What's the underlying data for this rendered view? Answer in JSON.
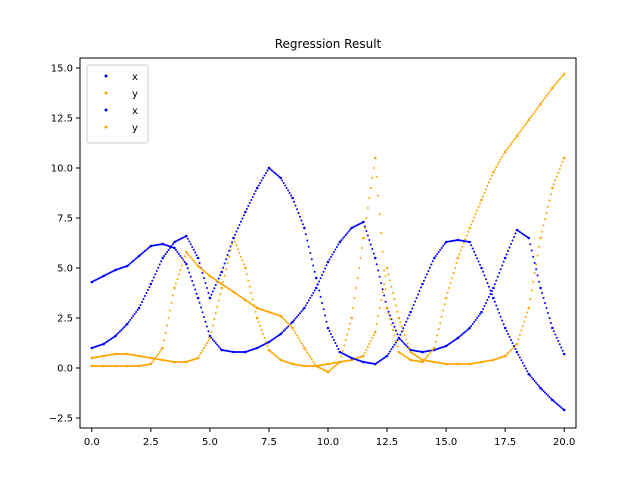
{
  "chart_data": {
    "type": "scatter",
    "title": "Regression Result",
    "xlabel": "",
    "ylabel": "",
    "xlim": [
      -0.5,
      20.5
    ],
    "ylim": [
      -3.0,
      15.5
    ],
    "xticks": [
      0.0,
      2.5,
      5.0,
      7.5,
      10.0,
      12.5,
      15.0,
      17.5,
      20.0
    ],
    "xtick_labels": [
      "0.0",
      "2.5",
      "5.0",
      "7.5",
      "10.0",
      "12.5",
      "15.0",
      "17.5",
      "20.0"
    ],
    "yticks": [
      -2.5,
      0.0,
      2.5,
      5.0,
      7.5,
      10.0,
      12.5,
      15.0
    ],
    "ytick_labels": [
      "−2.5",
      "0.0",
      "2.5",
      "5.0",
      "7.5",
      "10.0",
      "12.5",
      "15.0"
    ],
    "grid": false,
    "legend_position": "top-left",
    "series": [
      {
        "name": "x",
        "color": "#0000ff",
        "x": [
          0,
          0.5,
          1,
          1.5,
          2,
          2.5,
          3,
          3.5,
          4,
          4.5,
          5,
          5.5,
          6,
          6.5,
          7,
          7.5,
          8,
          8.5,
          9,
          9.5,
          10,
          10.5,
          11,
          11.5,
          12,
          12.5,
          13,
          13.5,
          14,
          14.5,
          15,
          15.5,
          16,
          16.5,
          17,
          17.5,
          18,
          18.5,
          19,
          19.5,
          20
        ],
        "y": [
          4.3,
          4.6,
          4.9,
          5.1,
          5.6,
          6.1,
          6.2,
          6.0,
          5.2,
          3.5,
          1.6,
          0.9,
          0.8,
          0.8,
          1.0,
          1.3,
          1.7,
          2.3,
          3.0,
          4.0,
          5.3,
          6.3,
          7.0,
          7.3,
          5.5,
          3.0,
          1.5,
          0.9,
          0.8,
          0.9,
          1.1,
          1.5,
          2.0,
          2.8,
          4.0,
          5.5,
          6.9,
          6.5,
          4.0,
          2.0,
          0.7
        ]
      },
      {
        "name": "y",
        "color": "#ffa500",
        "x": [
          0,
          0.5,
          1,
          1.5,
          2,
          2.5,
          3,
          3.5,
          4,
          4.5,
          5,
          5.5,
          6,
          6.5,
          7,
          7.5,
          8,
          8.5,
          9,
          9.5,
          10,
          10.5,
          11,
          11.5,
          12,
          12.5,
          13,
          13.5,
          14,
          14.5,
          15,
          15.5,
          16,
          16.5,
          17,
          17.5,
          18,
          18.5,
          19,
          19.5,
          20
        ],
        "y": [
          0.5,
          0.6,
          0.7,
          0.7,
          0.6,
          0.5,
          0.4,
          0.3,
          0.3,
          0.5,
          1.5,
          4.0,
          6.5,
          5.0,
          2.5,
          0.9,
          0.4,
          0.2,
          0.1,
          0.1,
          0.2,
          0.3,
          0.4,
          0.6,
          1.8,
          5.0,
          2.5,
          0.8,
          0.4,
          0.3,
          0.2,
          0.2,
          0.2,
          0.3,
          0.4,
          0.6,
          1.2,
          3.0,
          6.5,
          9.0,
          10.5
        ]
      },
      {
        "name": "x",
        "color": "#0000ff",
        "x": [
          0,
          0.5,
          1,
          1.5,
          2,
          2.5,
          3,
          3.5,
          4,
          4.5,
          5,
          5.5,
          6,
          6.5,
          7,
          7.5,
          8,
          8.5,
          9,
          9.5,
          10,
          10.5,
          11,
          11.5,
          12,
          12.5,
          13,
          13.5,
          14,
          14.5,
          15,
          15.5,
          16,
          16.5,
          17,
          17.5,
          18,
          18.5,
          19,
          19.5,
          20
        ],
        "y": [
          1.0,
          1.2,
          1.6,
          2.2,
          3.0,
          4.2,
          5.5,
          6.3,
          6.6,
          5.5,
          3.5,
          4.8,
          6.5,
          7.8,
          9.0,
          10.0,
          9.5,
          8.5,
          7.0,
          4.5,
          2.0,
          0.8,
          0.5,
          0.3,
          0.2,
          0.6,
          1.5,
          2.8,
          4.2,
          5.5,
          6.3,
          6.4,
          6.3,
          5.0,
          3.5,
          2.0,
          0.8,
          -0.3,
          -1.0,
          -1.6,
          -2.1
        ]
      },
      {
        "name": "y",
        "color": "#ffa500",
        "x": [
          0,
          0.5,
          1,
          1.5,
          2,
          2.5,
          3,
          3.5,
          4,
          4.5,
          5,
          5.5,
          6,
          6.5,
          7,
          7.5,
          8,
          8.5,
          9,
          9.5,
          10,
          10.5,
          11,
          11.5,
          12,
          12.5,
          13,
          13.5,
          14,
          14.5,
          15,
          15.5,
          16,
          16.5,
          17,
          17.5,
          18,
          18.5,
          19,
          19.5,
          20
        ],
        "y": [
          0.1,
          0.1,
          0.1,
          0.1,
          0.1,
          0.2,
          1.0,
          4.0,
          5.8,
          5.1,
          4.6,
          4.2,
          3.8,
          3.4,
          3.0,
          2.8,
          2.6,
          2.0,
          1.0,
          0.1,
          -0.2,
          0.3,
          2.5,
          6.5,
          10.5,
          3.0,
          0.8,
          0.4,
          0.3,
          1.0,
          3.5,
          5.5,
          7.0,
          8.4,
          9.8,
          10.8,
          11.6,
          12.4,
          13.2,
          14.0,
          14.7
        ]
      }
    ]
  }
}
